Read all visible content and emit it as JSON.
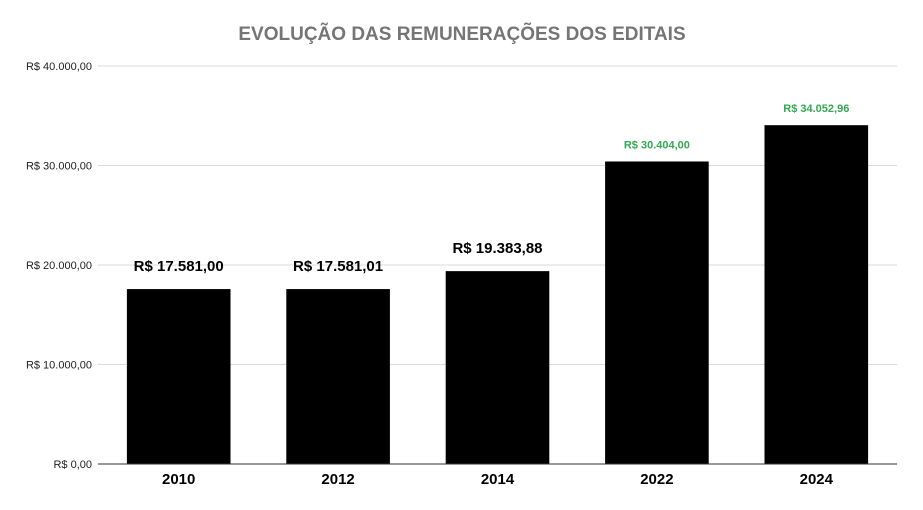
{
  "chart_data": {
    "type": "bar",
    "title": "EVOLUÇÃO DAS REMUNERAÇÕES DOS EDITAIS",
    "xlabel": "",
    "ylabel": "",
    "categories": [
      "2010",
      "2012",
      "2014",
      "2022",
      "2024"
    ],
    "values": [
      17581.0,
      17581.01,
      19383.88,
      30404.0,
      34052.96
    ],
    "data_labels": [
      "R$ 17.581,00",
      "R$ 17.581,01",
      "R$ 19.383,88",
      "R$ 30.404,00",
      "R$ 34.052,96"
    ],
    "data_label_colors": [
      "#000000",
      "#000000",
      "#000000",
      "#34a853",
      "#34a853"
    ],
    "data_label_emphasis": [
      "large",
      "large",
      "large",
      "small",
      "small"
    ],
    "ylim": [
      0,
      40000
    ],
    "yticks": [
      0,
      10000,
      20000,
      30000,
      40000
    ],
    "ytick_labels": [
      "R$ 0,00",
      "R$ 10.000,00",
      "R$ 20.000,00",
      "R$ 30.000,00",
      "R$ 40.000,00"
    ],
    "bar_color": "#000000",
    "grid": true,
    "legend": "none"
  }
}
